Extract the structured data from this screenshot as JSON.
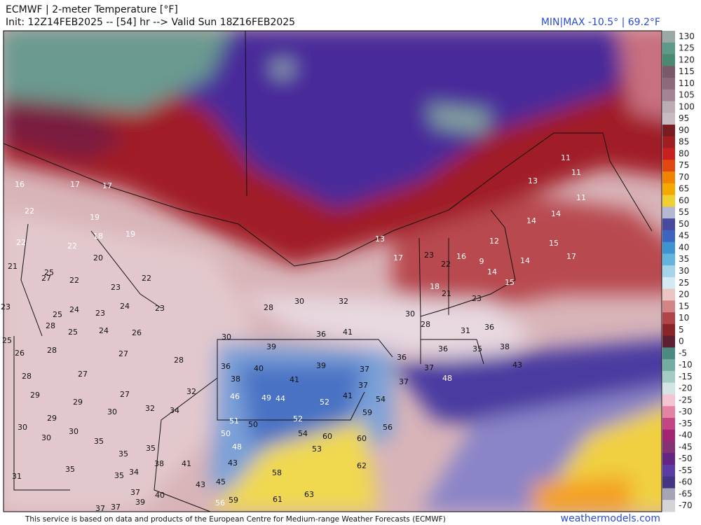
{
  "header": {
    "title": "ECMWF | 2-meter Temperature [°F]",
    "init": "Init: 12Z14FEB2025 -- [54] hr --> Valid Sun 18Z16FEB2025",
    "minmax": "MIN|MAX -10.5° | 69.2°F"
  },
  "colorbar": {
    "labels": [
      130,
      125,
      120,
      115,
      110,
      105,
      100,
      95,
      90,
      85,
      80,
      75,
      70,
      65,
      60,
      55,
      50,
      45,
      40,
      35,
      30,
      25,
      20,
      15,
      10,
      5,
      0,
      -5,
      -10,
      -15,
      -20,
      -25,
      -30,
      -35,
      -40,
      -45,
      -50,
      -55,
      -60,
      -65,
      -70
    ],
    "colors": [
      "#9aa8a8",
      "#5e9a8c",
      "#4a8a70",
      "#7a5a6a",
      "#8c6a7c",
      "#a48494",
      "#bcacb4",
      "#c8bcc4",
      "#7a1c20",
      "#a01e22",
      "#c82020",
      "#e04810",
      "#f08400",
      "#f4a800",
      "#f0d030",
      "#b4b8d0",
      "#484aa0",
      "#3c64c0",
      "#3c94d0",
      "#64b4e0",
      "#a4d4ea",
      "#d4eaf2",
      "#ecc4c4",
      "#d48484",
      "#b04448",
      "#8a2428",
      "#5e2030",
      "#4a8a80",
      "#74aca4",
      "#a4ccc4",
      "#d4e4e4",
      "#f2c4d4",
      "#e484a4",
      "#c44484",
      "#a42474",
      "#843274",
      "#642484",
      "#5a3ca4",
      "#443484",
      "#a4a4b4",
      "#d4d4d8"
    ]
  },
  "stations": [
    16,
    17,
    17,
    22,
    19,
    22,
    22,
    18,
    19,
    21,
    20,
    25,
    27,
    22,
    23,
    22,
    24,
    23,
    25,
    24,
    23,
    23,
    28,
    25,
    24,
    26,
    25,
    26,
    28,
    27,
    28,
    27,
    28,
    29,
    29,
    27,
    32,
    32,
    34,
    30,
    29,
    30,
    30,
    30,
    35,
    35,
    35,
    34,
    35,
    38,
    41,
    35,
    31,
    37,
    40,
    43,
    45,
    43,
    48,
    50,
    51,
    50,
    46,
    49,
    44,
    38,
    36,
    40,
    41,
    39,
    39,
    52,
    41,
    37,
    37,
    52,
    54,
    60,
    60,
    59,
    54,
    56,
    53,
    62,
    58,
    56,
    59,
    61,
    63,
    37,
    37,
    39,
    30,
    36,
    41,
    36,
    37,
    37,
    48,
    36,
    35,
    38,
    43,
    31,
    36,
    28,
    30,
    30,
    32,
    28,
    13,
    17,
    23,
    22,
    16,
    9,
    18,
    21,
    23,
    14,
    12,
    15,
    14,
    15,
    17,
    14,
    14,
    13,
    11,
    11,
    11
  ],
  "footer": {
    "credit": "This service is based on data and products of the European Centre for Medium-range Weather Forecasts (ECMWF)",
    "site": "weathermodels.com"
  }
}
